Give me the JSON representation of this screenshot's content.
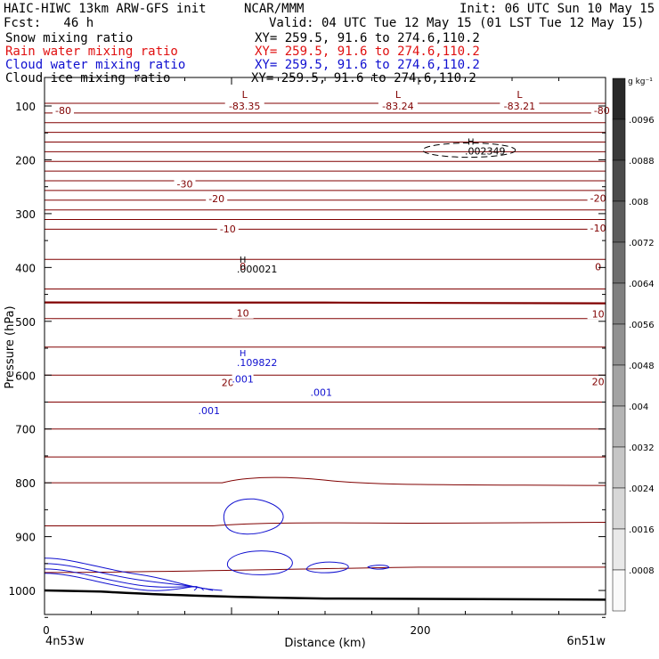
{
  "header": {
    "model_title": "HAIC-HIWC 13km ARW-GFS init",
    "org": "NCAR/MMM",
    "init": "Init: 06 UTC Sun 10 May 15",
    "fcst": "Fcst:   46 h",
    "valid": "Valid: 04 UTC Tue 12 May 15 (01 LST Tue 12 May 15)",
    "fields": [
      {
        "label": "Snow mixing ratio",
        "xy": "XY= 259.5, 91.6 to 274.6,110.2",
        "color": "#000000"
      },
      {
        "label": "Rain water mixing ratio",
        "xy": "XY= 259.5, 91.6 to 274.6,110.2",
        "color": "#e01010"
      },
      {
        "label": "Cloud water mixing ratio",
        "xy": "XY= 259.5, 91.6 to 274.6,110.2",
        "color": "#1010d0"
      },
      {
        "label": "Cloud ice mixing ratio",
        "xy": "XY= 259.5, 91.6 to 274.6,110.2",
        "color": "#000000"
      }
    ]
  },
  "chart_data": {
    "type": "line",
    "xlabel": "Distance (km)",
    "ylabel": "Pressure (hPa)",
    "xlim": [
      0,
      300
    ],
    "ylim": [
      1050,
      50
    ],
    "x_ticks": [
      0,
      200
    ],
    "y_ticks": [
      100,
      200,
      300,
      400,
      500,
      600,
      700,
      800,
      900,
      1000
    ],
    "endpoints": {
      "left": "4n53w",
      "right": "6n51w"
    },
    "colorbar": {
      "unit": "g kg⁻¹",
      "ticks": [
        ".0096",
        ".0088",
        ".008",
        ".0072",
        ".0064",
        ".0056",
        ".0048",
        ".004",
        ".0032",
        ".0024",
        ".0016",
        ".0008"
      ]
    },
    "temperature_labels": [
      {
        "text": "-80",
        "x": 10,
        "p": 108
      },
      {
        "text": "-80",
        "x": 298,
        "p": 108
      },
      {
        "text": "-30",
        "x": 75,
        "p": 245
      },
      {
        "text": "-20",
        "x": 92,
        "p": 272
      },
      {
        "text": "-20",
        "x": 296,
        "p": 271
      },
      {
        "text": "-10",
        "x": 98,
        "p": 328
      },
      {
        "text": "-10",
        "x": 296,
        "p": 327
      },
      {
        "text": "0",
        "x": 106,
        "p": 398
      },
      {
        "text": "0",
        "x": 296,
        "p": 399
      },
      {
        "text": "10",
        "x": 106,
        "p": 485
      },
      {
        "text": "10",
        "x": 296,
        "p": 486
      },
      {
        "text": "20",
        "x": 98,
        "p": 614
      },
      {
        "text": "20",
        "x": 296,
        "p": 612
      }
    ],
    "minima": [
      {
        "symbol": "L",
        "value": "-83.35",
        "x": 107
      },
      {
        "symbol": "L",
        "value": "-83.24",
        "x": 189
      },
      {
        "symbol": "L",
        "value": "-83.21",
        "x": 254
      }
    ],
    "maxima": [
      {
        "symbol": "H",
        "value": ".002349",
        "x": 228,
        "p": 182,
        "color": "#000000"
      },
      {
        "symbol": "H",
        "value": ".000021",
        "x": 106,
        "p": 401,
        "color": "#000000"
      },
      {
        "symbol": "H",
        "value": ".109822",
        "x": 106,
        "p": 575,
        "color": "#1010d0"
      }
    ],
    "cloud_water_labels": [
      {
        "text": ".001",
        "x": 106,
        "p": 607
      },
      {
        "text": ".001",
        "x": 148,
        "p": 632
      },
      {
        "text": ".001",
        "x": 88,
        "p": 666
      }
    ]
  }
}
